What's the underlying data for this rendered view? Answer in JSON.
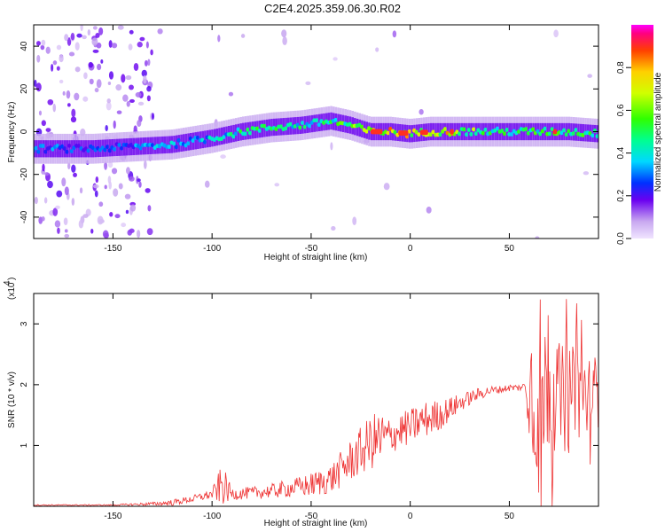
{
  "title": "C2E4.2025.359.06.30.R02",
  "chart_data": [
    {
      "type": "heatmap",
      "xlabel": "Height of straight line (km)",
      "ylabel": "Frequency (Hz)",
      "xlim": [
        -190,
        95
      ],
      "ylim": [
        -50,
        50
      ],
      "xticks": [
        -150,
        -100,
        -50,
        0,
        50
      ],
      "yticks": [
        -40,
        -20,
        0,
        20,
        40
      ],
      "ytick_labels": [
        "-40",
        "-20",
        "0",
        "20",
        "40"
      ],
      "colorbar": {
        "label": "Normalized spectral amplitude",
        "range": [
          0,
          1
        ],
        "ticks": [
          0.0,
          0.2,
          0.4,
          0.6,
          0.8
        ],
        "tick_labels": [
          "0.0",
          "0.2",
          "0.4",
          "0.6",
          "0.8"
        ]
      },
      "ridge": {
        "x": [
          -180,
          -160,
          -140,
          -120,
          -100,
          -85,
          -70,
          -55,
          -40,
          -30,
          -20,
          -10,
          0,
          10,
          20,
          40,
          60,
          80,
          95
        ],
        "center_freq": [
          -8,
          -8,
          -7,
          -6,
          -3,
          0,
          2,
          3,
          5,
          3,
          0,
          0,
          -1,
          0,
          0,
          0,
          0,
          0,
          -1
        ],
        "peak_amplitude": [
          0.35,
          0.3,
          0.35,
          0.45,
          0.5,
          0.55,
          0.55,
          0.55,
          0.6,
          0.65,
          0.8,
          0.9,
          0.85,
          0.7,
          0.9,
          0.55,
          0.6,
          0.6,
          0.6
        ]
      }
    },
    {
      "type": "line",
      "xlabel": "Height of straight line (km)",
      "ylabel": "SNR (10 * v/v)",
      "scale_label": "(x10",
      "scale_exp": "4",
      "scale_close": ")",
      "xlim": [
        -190,
        95
      ],
      "ylim": [
        0,
        3.5
      ],
      "xticks": [
        -150,
        -100,
        -50,
        0,
        50
      ],
      "yticks": [
        1,
        2,
        3
      ],
      "color": "#ee3333",
      "series": [
        {
          "x": [
            -190,
            -170,
            -150,
            -140,
            -130,
            -120,
            -110,
            -100,
            -95,
            -90,
            -80,
            -70,
            -60,
            -50,
            -40,
            -35,
            -30,
            -25,
            -20,
            -15,
            -10,
            -5,
            0,
            5,
            10,
            15,
            20,
            25,
            30,
            35,
            40,
            45,
            50,
            55,
            58,
            60,
            62,
            65,
            70,
            75,
            80,
            85,
            90,
            95
          ],
          "y": [
            0.02,
            0.02,
            0.02,
            0.03,
            0.04,
            0.06,
            0.12,
            0.2,
            0.35,
            0.2,
            0.22,
            0.25,
            0.3,
            0.35,
            0.45,
            0.6,
            0.75,
            0.9,
            1.05,
            1.1,
            1.15,
            1.25,
            1.3,
            1.4,
            1.45,
            1.5,
            1.6,
            1.7,
            1.78,
            1.85,
            1.9,
            1.92,
            1.95,
            1.95,
            1.98,
            2.0,
            1.9,
            1.9,
            1.9,
            1.8,
            1.8,
            1.9,
            1.8,
            1.9
          ],
          "noise": [
            0.01,
            0.01,
            0.01,
            0.02,
            0.03,
            0.05,
            0.06,
            0.08,
            0.35,
            0.1,
            0.1,
            0.12,
            0.15,
            0.2,
            0.25,
            0.3,
            0.35,
            0.4,
            0.45,
            0.5,
            0.3,
            0.3,
            0.3,
            0.3,
            0.3,
            0.25,
            0.2,
            0.15,
            0.12,
            0.1,
            0.08,
            0.06,
            0.06,
            0.06,
            0.06,
            0.9,
            1.4,
            1.4,
            1.0,
            0.9,
            0.8,
            0.8,
            0.7,
            0.6
          ]
        }
      ]
    }
  ]
}
